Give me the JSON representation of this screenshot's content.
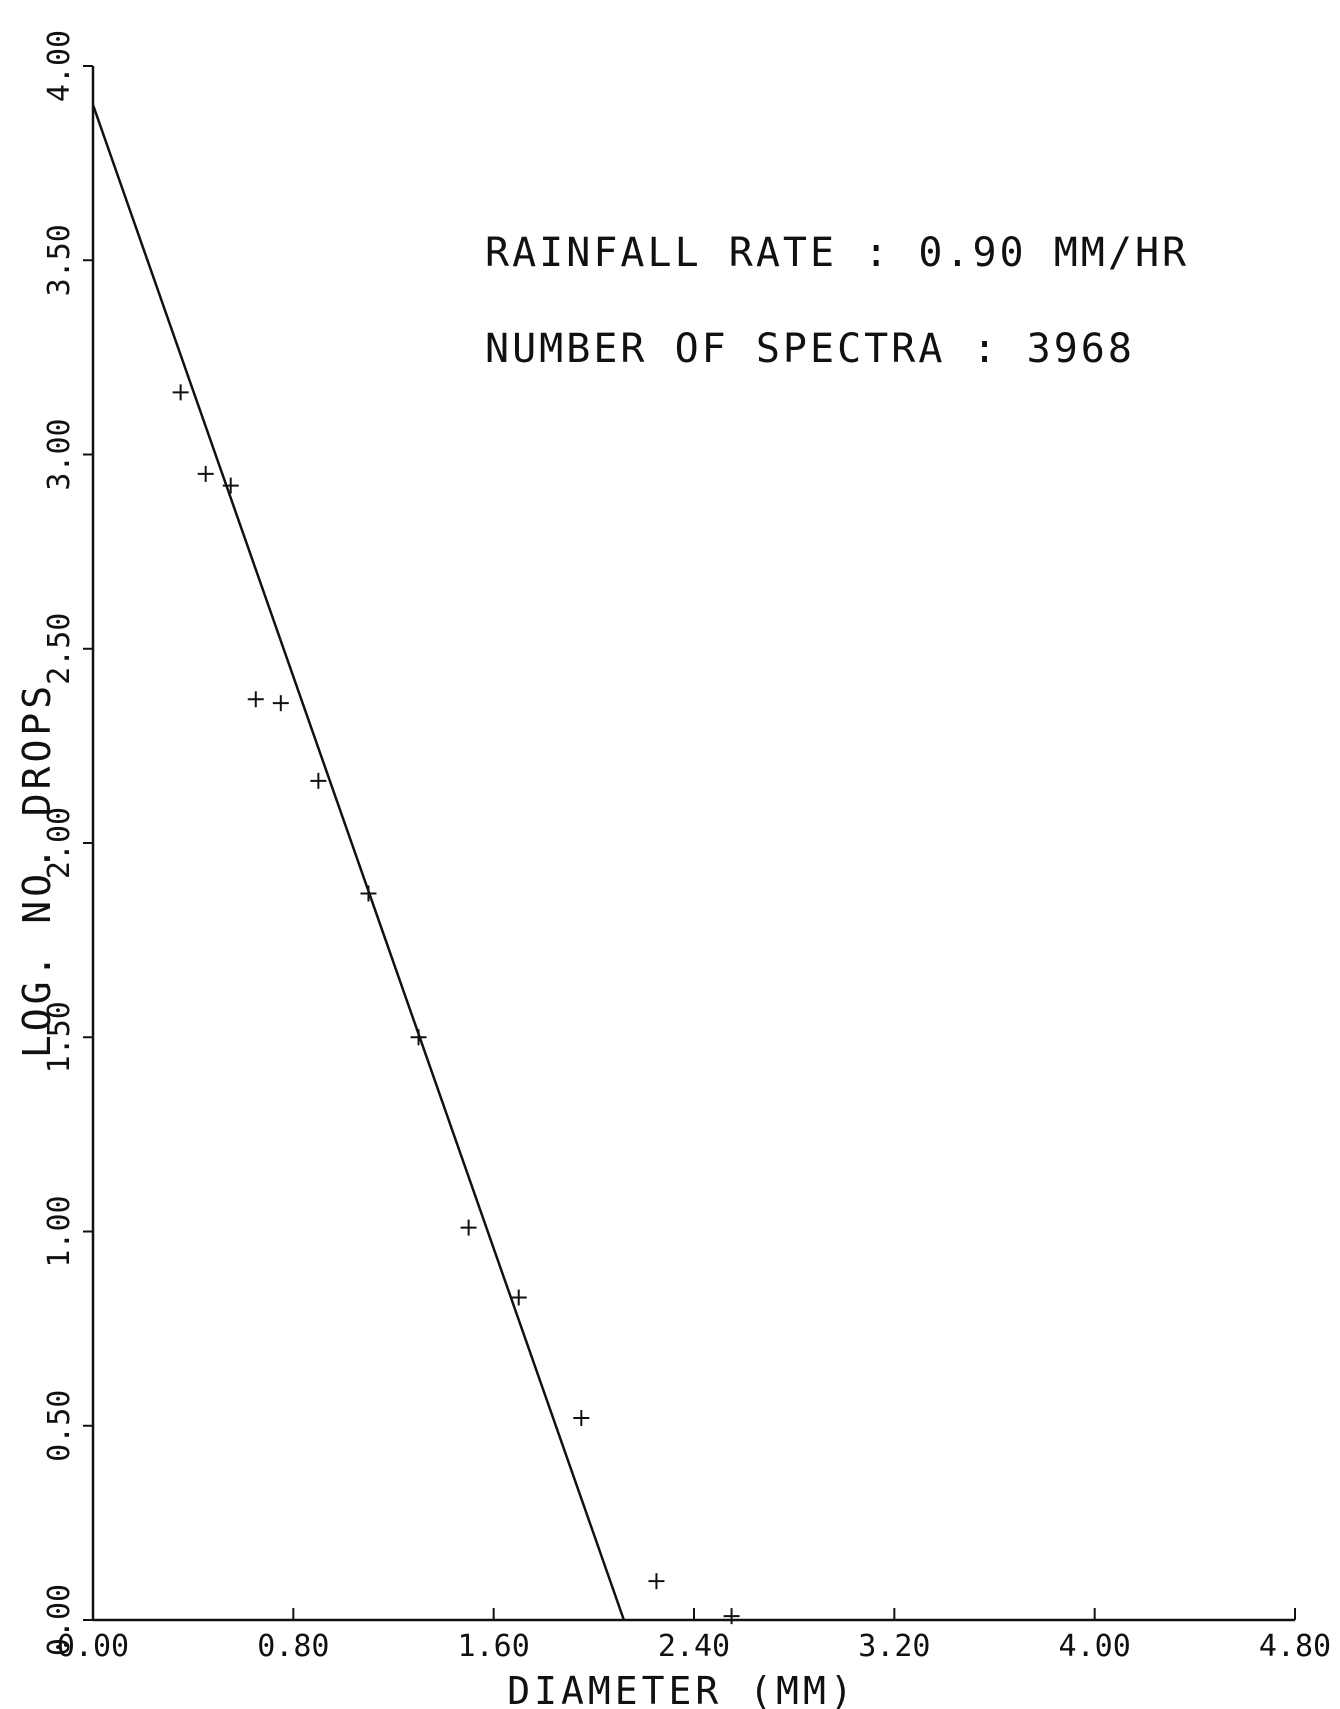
{
  "chart_data": {
    "type": "scatter",
    "title": "",
    "xlabel": "DIAMETER (MM)",
    "ylabel": "LOG. NO. DROPS",
    "xlim": [
      0.0,
      4.8
    ],
    "ylim": [
      0.0,
      4.0
    ],
    "x_ticks": [
      0.0,
      0.8,
      1.6,
      2.4,
      3.2,
      4.0,
      4.8
    ],
    "x_tick_labels": [
      "0.00",
      "0.80",
      "1.60",
      "2.40",
      "3.20",
      "4.00",
      "4.80"
    ],
    "y_ticks": [
      0.0,
      0.5,
      1.0,
      1.5,
      2.0,
      2.5,
      3.0,
      3.5,
      4.0
    ],
    "y_tick_labels": [
      "0.00",
      "0.50",
      "1.00",
      "1.50",
      "2.00",
      "2.50",
      "3.00",
      "3.50",
      "4.00"
    ],
    "grid": false,
    "annotations": [
      "RAINFALL RATE : 0.90 MM/HR",
      "NUMBER OF SPECTRA : 3968"
    ],
    "series": [
      {
        "kind": "points",
        "marker": "plus",
        "x": [
          0.35,
          0.45,
          0.55,
          0.65,
          0.75,
          0.9,
          1.1,
          1.3,
          1.5,
          1.7,
          1.95,
          2.25,
          2.55
        ],
        "y": [
          3.16,
          2.95,
          2.92,
          2.37,
          2.36,
          2.16,
          1.87,
          1.5,
          1.01,
          0.83,
          0.52,
          0.1,
          0.01
        ]
      },
      {
        "kind": "fit-line",
        "x": [
          0.0,
          2.12
        ],
        "y": [
          3.9,
          0.0
        ]
      }
    ],
    "colors": {
      "ink": "#111111",
      "background": "#ffffff"
    }
  }
}
